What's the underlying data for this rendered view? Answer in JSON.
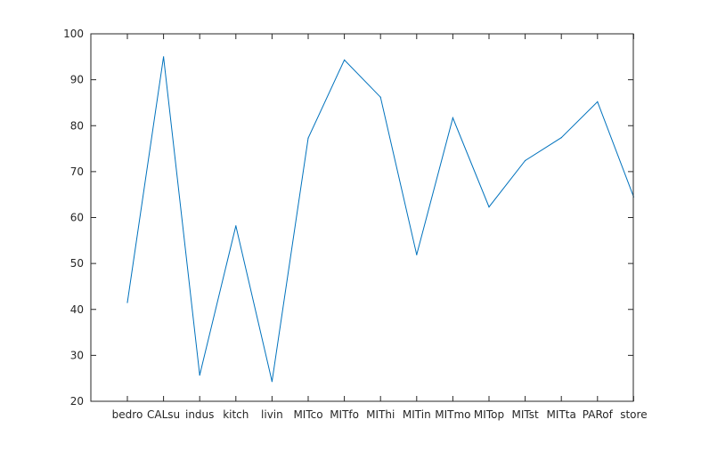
{
  "chart_data": {
    "type": "line",
    "title": "",
    "xlabel": "",
    "ylabel": "",
    "categories": [
      "bedro",
      "CALsu",
      "indus",
      "kitch",
      "livin",
      "MITco",
      "MITfo",
      "MIThi",
      "MITin",
      "MITmo",
      "MITop",
      "MITst",
      "MITta",
      "PARof",
      "store"
    ],
    "series": [
      {
        "values": [
          41.5,
          95,
          25.7,
          58.2,
          24.3,
          77.3,
          94.3,
          86.2,
          51.9,
          81.7,
          62.3,
          72.4,
          77.4,
          85.2,
          64.5
        ]
      }
    ],
    "ylim": [
      20,
      100
    ],
    "yticks": [
      "20",
      "30",
      "40",
      "50",
      "60",
      "70",
      "80",
      "90",
      "100"
    ],
    "grid": false,
    "legend": "none",
    "colors": {
      "line": "#0072bd",
      "axis": "#262626",
      "background": "#ffffff"
    }
  }
}
